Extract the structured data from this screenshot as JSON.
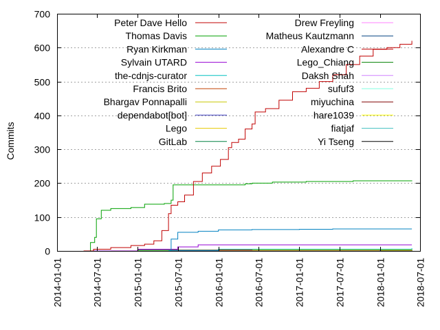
{
  "chart_data": {
    "type": "line",
    "title": "",
    "xlabel": "",
    "ylabel": "Commits",
    "ylim": [
      0,
      700
    ],
    "yticks": [
      0,
      100,
      200,
      300,
      400,
      500,
      600,
      700
    ],
    "xlim": [
      "2014-01-01",
      "2018-07-01"
    ],
    "xticks": [
      "2014-01-01",
      "2014-07-01",
      "2015-01-01",
      "2015-07-01",
      "2016-01-01",
      "2016-07-01",
      "2017-01-01",
      "2017-07-01",
      "2018-01-01",
      "2018-07-01"
    ],
    "grid": "y-dotted",
    "legend": "top, two columns",
    "series": [
      {
        "name": "Peter Dave Hello",
        "color": "#c00000",
        "points": [
          [
            "2014-05-01",
            0
          ],
          [
            "2014-06-15",
            5
          ],
          [
            "2014-09-01",
            10
          ],
          [
            "2014-12-01",
            16
          ],
          [
            "2015-02-01",
            20
          ],
          [
            "2015-03-15",
            30
          ],
          [
            "2015-04-20",
            60
          ],
          [
            "2015-05-20",
            110
          ],
          [
            "2015-06-01",
            135
          ],
          [
            "2015-07-01",
            145
          ],
          [
            "2015-08-01",
            165
          ],
          [
            "2015-09-10",
            205
          ],
          [
            "2015-10-20",
            230
          ],
          [
            "2015-12-01",
            250
          ],
          [
            "2016-01-10",
            270
          ],
          [
            "2016-02-15",
            305
          ],
          [
            "2016-03-01",
            320
          ],
          [
            "2016-04-01",
            330
          ],
          [
            "2016-05-01",
            360
          ],
          [
            "2016-06-01",
            375
          ],
          [
            "2016-06-15",
            410
          ],
          [
            "2016-08-01",
            420
          ],
          [
            "2016-10-01",
            445
          ],
          [
            "2016-12-01",
            470
          ],
          [
            "2017-02-01",
            480
          ],
          [
            "2017-04-01",
            500
          ],
          [
            "2017-06-01",
            520
          ],
          [
            "2017-08-01",
            550
          ],
          [
            "2017-10-01",
            575
          ],
          [
            "2017-12-01",
            595
          ],
          [
            "2018-02-01",
            600
          ],
          [
            "2018-04-01",
            610
          ],
          [
            "2018-05-25",
            620
          ]
        ]
      },
      {
        "name": "Thomas Davis",
        "color": "#00a000",
        "points": [
          [
            "2014-05-20",
            0
          ],
          [
            "2014-06-01",
            25
          ],
          [
            "2014-06-20",
            40
          ],
          [
            "2014-06-28",
            95
          ],
          [
            "2014-07-20",
            120
          ],
          [
            "2014-09-01",
            125
          ],
          [
            "2014-12-01",
            128
          ],
          [
            "2015-02-01",
            138
          ],
          [
            "2015-05-01",
            140
          ],
          [
            "2015-06-01",
            150
          ],
          [
            "2015-06-10",
            195
          ],
          [
            "2016-05-01",
            198
          ],
          [
            "2016-06-01",
            200
          ],
          [
            "2016-09-01",
            203
          ],
          [
            "2017-02-01",
            205
          ],
          [
            "2017-09-01",
            207
          ],
          [
            "2018-05-25",
            208
          ]
        ]
      },
      {
        "name": "Ryan Kirkman",
        "color": "#0080c0",
        "points": [
          [
            "2015-05-20",
            0
          ],
          [
            "2015-06-01",
            35
          ],
          [
            "2015-07-01",
            55
          ],
          [
            "2015-10-01",
            58
          ],
          [
            "2016-01-01",
            62
          ],
          [
            "2016-06-01",
            63
          ],
          [
            "2017-01-01",
            64
          ],
          [
            "2017-06-01",
            65
          ],
          [
            "2018-05-25",
            65
          ]
        ]
      },
      {
        "name": "Sylvain UTARD",
        "color": "#9400d3",
        "points": [
          [
            "2014-06-01",
            0
          ],
          [
            "2015-01-01",
            5
          ],
          [
            "2015-07-01",
            12
          ],
          [
            "2015-10-01",
            18
          ],
          [
            "2018-05-25",
            18
          ]
        ]
      },
      {
        "name": "the-cdnjs-curator",
        "color": "#00c0c0",
        "points": [
          [
            "2014-06-01",
            0
          ],
          [
            "2015-01-01",
            2
          ],
          [
            "2016-01-01",
            5
          ],
          [
            "2018-05-25",
            8
          ]
        ]
      },
      {
        "name": "Francis Brito",
        "color": "#c04000",
        "points": [
          [
            "2014-07-01",
            0
          ],
          [
            "2015-01-01",
            3
          ],
          [
            "2016-06-01",
            5
          ],
          [
            "2018-05-25",
            6
          ]
        ]
      },
      {
        "name": "Bhargav Ponnapalli",
        "color": "#c8c800",
        "points": [
          [
            "2014-07-01",
            0
          ],
          [
            "2015-06-01",
            3
          ],
          [
            "2018-05-25",
            4
          ]
        ]
      },
      {
        "name": "dependabot[bot]",
        "color": "#4040c0",
        "points": [
          [
            "2014-06-01",
            0
          ],
          [
            "2018-01-01",
            3
          ],
          [
            "2018-05-25",
            5
          ]
        ]
      },
      {
        "name": "Lego",
        "color": "#e6c800",
        "points": [
          [
            "2014-07-01",
            0
          ],
          [
            "2015-06-01",
            2
          ],
          [
            "2018-05-25",
            3
          ]
        ]
      },
      {
        "name": "GitLab",
        "color": "#008040",
        "points": [
          [
            "2014-07-01",
            0
          ],
          [
            "2016-06-01",
            2
          ],
          [
            "2018-05-25",
            3
          ]
        ]
      },
      {
        "name": "Drew Freyling",
        "color": "#ff80ff",
        "points": [
          [
            "2014-07-01",
            0
          ],
          [
            "2015-03-01",
            2
          ],
          [
            "2018-05-25",
            2
          ]
        ]
      },
      {
        "name": "Matheus Kautzmann",
        "color": "#004080",
        "points": [
          [
            "2014-07-01",
            0
          ],
          [
            "2015-01-01",
            1
          ],
          [
            "2018-05-25",
            2
          ]
        ]
      },
      {
        "name": "Alexandre C",
        "color": "#c00000",
        "points": [
          [
            "2014-07-01",
            0
          ],
          [
            "2016-01-01",
            1
          ],
          [
            "2018-05-25",
            2
          ]
        ]
      },
      {
        "name": "Lego_Chiang",
        "color": "#008000",
        "points": [
          [
            "2014-07-01",
            0
          ],
          [
            "2016-06-01",
            1
          ],
          [
            "2018-05-25",
            2
          ]
        ]
      },
      {
        "name": "Daksh Shah",
        "color": "#d080ff",
        "points": [
          [
            "2014-07-01",
            0
          ],
          [
            "2016-06-01",
            1
          ],
          [
            "2018-05-25",
            1
          ]
        ]
      },
      {
        "name": "sufuf3",
        "color": "#80ffe0",
        "points": [
          [
            "2014-07-01",
            0
          ],
          [
            "2016-06-01",
            1
          ],
          [
            "2018-05-25",
            1
          ]
        ]
      },
      {
        "name": "miyuchina",
        "color": "#800000",
        "points": [
          [
            "2014-07-01",
            0
          ],
          [
            "2017-01-01",
            1
          ],
          [
            "2018-05-25",
            1
          ]
        ]
      },
      {
        "name": "hare1039",
        "color": "#ffff00",
        "points": [
          [
            "2014-07-01",
            0
          ],
          [
            "2017-06-01",
            1
          ],
          [
            "2018-05-25",
            1
          ]
        ]
      },
      {
        "name": "fiatjaf",
        "color": "#40c0c0",
        "points": [
          [
            "2014-07-01",
            0
          ],
          [
            "2017-06-01",
            1
          ],
          [
            "2018-05-25",
            1
          ]
        ]
      },
      {
        "name": "Yi Tseng",
        "color": "#000000",
        "points": [
          [
            "2014-07-01",
            0
          ],
          [
            "2017-06-01",
            1
          ],
          [
            "2018-05-25",
            1
          ]
        ]
      }
    ]
  }
}
